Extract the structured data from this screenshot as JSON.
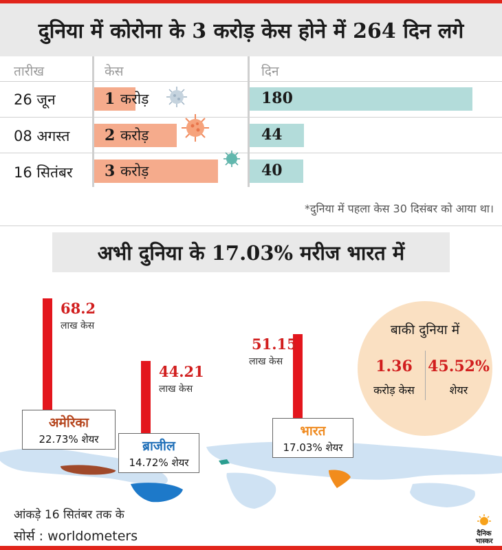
{
  "title": "दुनिया में कोरोना के 3 करोड़ केस होने में 264 दिन लगे",
  "table": {
    "headers": {
      "date": "तारीख",
      "cases": "केस",
      "days": "दिन"
    },
    "rows": [
      {
        "date": "26 जून",
        "cases_num": "1",
        "cases_unit": "करोड़",
        "days": "180"
      },
      {
        "date": "08 अगस्त",
        "cases_num": "2",
        "cases_unit": "करोड़",
        "days": "44"
      },
      {
        "date": "16 सितंबर",
        "cases_num": "3",
        "cases_unit": "करोड़",
        "days": "40"
      }
    ]
  },
  "note": "*दुनिया में पहला केस 30 दिसंबर को आया था।",
  "title2": "अभी दुनिया के 17.03% मरीज भारत में",
  "map": {
    "countries": [
      {
        "value_label": "68.2",
        "unit": "लाख केस",
        "name": "अमेरिका",
        "share": "22.73% शेयर",
        "name_color": "#b5441c"
      },
      {
        "value_label": "44.21",
        "unit": "लाख केस",
        "name": "ब्राजील",
        "share": "14.72% शेयर",
        "name_color": "#1f6fb8"
      },
      {
        "value_label": "51.15",
        "unit": "लाख केस",
        "name": "भारत",
        "share": "17.03% शेयर",
        "name_color": "#ef8a1f"
      }
    ],
    "colors": {
      "usa": "#a0492a",
      "brazil": "#1d79c9",
      "india": "#f28c1c",
      "land": "#cfe2f3",
      "pole": "#e3161d"
    }
  },
  "rest_of_world": {
    "title": "बाकी दुनिया में",
    "cases": "1.36",
    "cases_label": "करोड़ केस",
    "share": "45.52%",
    "share_label": "शेयर"
  },
  "footer": {
    "date_note": "आंकड़े 16 सितंबर तक के",
    "source_label": "सोर्स :",
    "source": "worldometers"
  },
  "logo": {
    "line1": "दैनिक",
    "line2": "भास्कर"
  },
  "chart_data": [
    {
      "type": "bar",
      "title": "दुनिया में कोरोना के 3 करोड़ केस होने में 264 दिन लगे",
      "categories": [
        "26 जून",
        "08 अगस्त",
        "16 सितंबर"
      ],
      "series": [
        {
          "name": "केस",
          "values": [
            1,
            2,
            3
          ]
        },
        {
          "name": "दिन",
          "values": [
            180,
            44,
            40
          ]
        }
      ]
    },
    {
      "type": "bar",
      "title": "अभी दुनिया के 17.03% मरीज भारत में",
      "categories": [
        "अमेरिका",
        "ब्राजील",
        "भारत"
      ],
      "series": [
        {
          "name": "लाख केस",
          "values": [
            68.2,
            44.21,
            51.15
          ]
        },
        {
          "name": "शेयर",
          "values": [
            22.73,
            14.72,
            17.03
          ]
        }
      ]
    }
  ]
}
